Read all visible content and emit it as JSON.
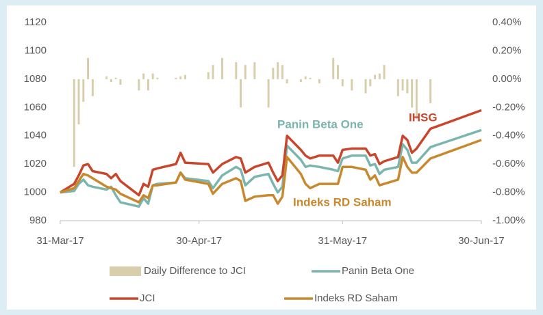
{
  "chart_data": {
    "type": "line",
    "x": [
      "2017-03-31",
      "2017-04-03",
      "2017-04-04",
      "2017-04-05",
      "2017-04-06",
      "2017-04-07",
      "2017-04-10",
      "2017-04-11",
      "2017-04-12",
      "2017-04-13",
      "2017-04-17",
      "2017-04-18",
      "2017-04-19",
      "2017-04-20",
      "2017-04-21",
      "2017-04-25",
      "2017-04-26",
      "2017-04-27",
      "2017-05-02",
      "2017-05-03",
      "2017-05-05",
      "2017-05-08",
      "2017-05-09",
      "2017-05-10",
      "2017-05-12",
      "2017-05-15",
      "2017-05-16",
      "2017-05-17",
      "2017-05-18",
      "2017-05-19",
      "2017-05-22",
      "2017-05-23",
      "2017-05-24",
      "2017-05-26",
      "2017-05-29",
      "2017-05-30",
      "2017-05-31",
      "2017-06-02",
      "2017-06-05",
      "2017-06-06",
      "2017-06-07",
      "2017-06-08",
      "2017-06-09",
      "2017-06-12",
      "2017-06-13",
      "2017-06-14",
      "2017-06-15",
      "2017-06-16",
      "2017-06-19",
      "2017-06-30"
    ],
    "series": [
      {
        "name": "Daily Difference to JCI",
        "type": "bar",
        "axis": "y2",
        "color": "#d9ceab",
        "values": [
          null,
          -0.62,
          -0.32,
          -0.16,
          0.15,
          -0.12,
          0.02,
          -0.02,
          0.01,
          -0.04,
          -0.08,
          0.04,
          -0.08,
          0.04,
          0.01,
          0.01,
          0.02,
          0.03,
          0.05,
          0.1,
          0.15,
          0.12,
          -0.2,
          0.1,
          0.12,
          -0.2,
          0.08,
          0.12,
          0.1,
          -0.03,
          -0.02,
          0.02,
          0.01,
          -0.03,
          0.15,
          0.1,
          -0.05,
          -0.08,
          -0.1,
          -0.05,
          0.03,
          0.04,
          0.1,
          -0.12,
          -0.08,
          -0.1,
          -0.2,
          -0.28,
          -0.17,
          null
        ]
      },
      {
        "name": "Panin Beta One",
        "type": "line",
        "color": "#7ab5ae",
        "values": [
          1000,
          1001,
          1006,
          1009,
          1005,
          1004,
          1002,
          1004,
          998,
          993,
          990,
          996,
          992,
          1005,
          1006,
          1007,
          1014,
          1010,
          1008,
          1003,
          1012,
          1018,
          1016,
          1005,
          1011,
          1013,
          1006,
          1000,
          1004,
          1033,
          1023,
          1018,
          1019,
          1018,
          1016,
          1015,
          1024,
          1026,
          1026,
          1019,
          1020,
          1013,
          1016,
          1018,
          1034,
          1030,
          1021,
          1021,
          1032,
          1044
        ]
      },
      {
        "name": "JCI",
        "type": "line",
        "color": "#c8462b",
        "values": [
          1000,
          1006,
          1012,
          1019,
          1020,
          1015,
          1013,
          1010,
          1013,
          1008,
          998,
          1006,
          1004,
          1016,
          1017,
          1020,
          1028,
          1021,
          1020,
          1014,
          1020,
          1025,
          1024,
          1014,
          1018,
          1021,
          1014,
          1008,
          1012,
          1040,
          1030,
          1026,
          1024,
          1026,
          1026,
          1021,
          1030,
          1031,
          1031,
          1026,
          1027,
          1020,
          1022,
          1025,
          1040,
          1037,
          1028,
          1031,
          1045,
          1058
        ]
      },
      {
        "name": "Indeks RD Saham",
        "type": "line",
        "color": "#c8892e",
        "values": [
          1000,
          1003,
          1008,
          1013,
          1012,
          1010,
          1004,
          1003,
          1002,
          999,
          993,
          998,
          996,
          1005,
          1005,
          1007,
          1014,
          1009,
          1006,
          999,
          1006,
          1010,
          1008,
          994,
          997,
          998,
          998,
          992,
          997,
          1025,
          1013,
          1006,
          1003,
          1006,
          1006,
          1006,
          1018,
          1018,
          1016,
          1009,
          1012,
          1005,
          1006,
          1009,
          1025,
          1018,
          1014,
          1014,
          1024,
          1037
        ]
      }
    ],
    "annotations": [
      {
        "text": "Panin Beta One",
        "series": 1
      },
      {
        "text": "IHSG",
        "series": 2
      },
      {
        "text": "Indeks RD Saham",
        "series": 3
      }
    ],
    "xlim": [
      "2017-03-31",
      "2017-06-30"
    ],
    "xticks": [
      {
        "value": "2017-03-31",
        "label": "31-Mar-17"
      },
      {
        "value": "2017-04-30",
        "label": "30-Apr-17"
      },
      {
        "value": "2017-05-31",
        "label": "31-May-17"
      },
      {
        "value": "2017-06-30",
        "label": "30-Jun-17"
      }
    ],
    "ylim": [
      980,
      1120
    ],
    "yticks": [
      980,
      1000,
      1020,
      1040,
      1060,
      1080,
      1100,
      1120
    ],
    "y2lim": [
      -1.0,
      0.4
    ],
    "y2ticks": [
      {
        "value": -1.0,
        "label": "-1.00%"
      },
      {
        "value": -0.8,
        "label": "-0.80%"
      },
      {
        "value": -0.6,
        "label": "-0.60%"
      },
      {
        "value": -0.4,
        "label": "-0.40%"
      },
      {
        "value": -0.2,
        "label": "-0.20%"
      },
      {
        "value": 0.0,
        "label": "0.00%"
      },
      {
        "value": 0.2,
        "label": "0.20%"
      },
      {
        "value": 0.4,
        "label": "0.40%"
      }
    ],
    "legend": "bottom"
  }
}
